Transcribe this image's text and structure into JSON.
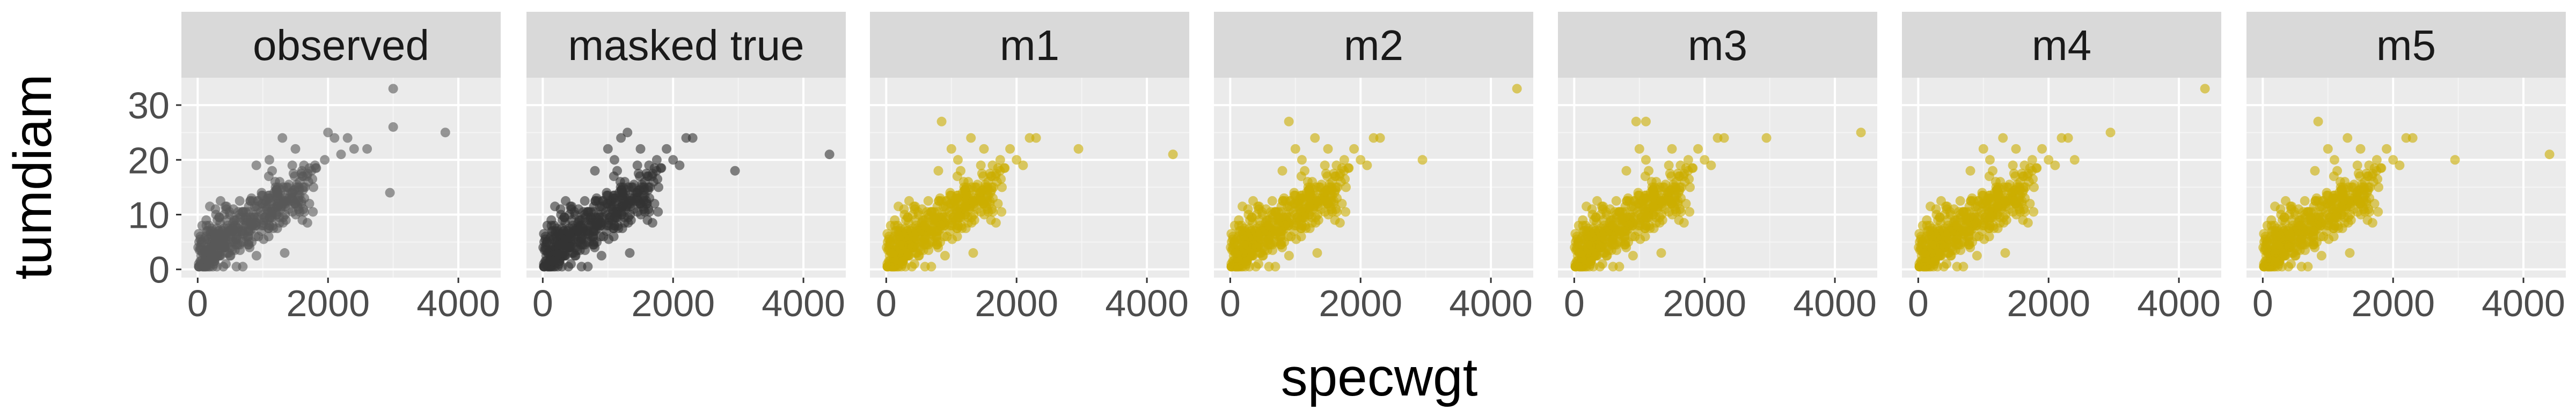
{
  "chart_data": {
    "type": "scatter",
    "layout": "faceted",
    "xlabel": "specwgt",
    "ylabel": "tumdiam",
    "xlim": [
      -250,
      4650
    ],
    "ylim": [
      -1.5,
      35
    ],
    "x_ticks": [
      0,
      2000,
      4000
    ],
    "y_ticks": [
      0,
      10,
      20,
      30
    ],
    "grid": true,
    "panels": [
      {
        "title": "observed",
        "color": "#595959",
        "points": [
          [
            3000,
            33
          ],
          [
            3800,
            25
          ],
          [
            3000,
            26
          ],
          [
            2950,
            14
          ],
          [
            2300,
            24
          ],
          [
            2100,
            24
          ],
          [
            2000,
            25
          ],
          [
            1950,
            20
          ],
          [
            1800,
            19
          ],
          [
            1500,
            22
          ],
          [
            1300,
            24
          ],
          [
            1700,
            16
          ],
          [
            2200,
            21
          ],
          [
            1100,
            20
          ],
          [
            900,
            19
          ],
          [
            1600,
            18
          ],
          [
            2400,
            22
          ],
          [
            2600,
            22
          ]
        ]
      },
      {
        "title": "masked true",
        "color": "#333333",
        "points": [
          [
            4400,
            21
          ],
          [
            2950,
            18
          ],
          [
            2300,
            24
          ],
          [
            2200,
            24
          ],
          [
            2000,
            20
          ],
          [
            1900,
            22
          ],
          [
            1750,
            20
          ],
          [
            1500,
            22
          ],
          [
            1300,
            25
          ],
          [
            1200,
            24
          ],
          [
            1000,
            22
          ],
          [
            1700,
            16
          ],
          [
            1100,
            20
          ],
          [
            800,
            18
          ],
          [
            2100,
            19
          ],
          [
            1600,
            12
          ],
          [
            600,
            8
          ]
        ]
      },
      {
        "title": "m1",
        "color": "#CCAD00",
        "points": [
          [
            4400,
            21
          ],
          [
            2950,
            22
          ],
          [
            2300,
            24
          ],
          [
            2200,
            24
          ],
          [
            2000,
            20
          ],
          [
            1900,
            22
          ],
          [
            1750,
            20
          ],
          [
            1500,
            22
          ],
          [
            1300,
            24
          ],
          [
            850,
            27
          ],
          [
            1000,
            22
          ],
          [
            1700,
            16
          ],
          [
            1100,
            20
          ],
          [
            800,
            18
          ],
          [
            2100,
            19
          ],
          [
            1600,
            14
          ],
          [
            600,
            8
          ]
        ]
      },
      {
        "title": "m2",
        "color": "#CCAD00",
        "points": [
          [
            4400,
            33
          ],
          [
            2950,
            20
          ],
          [
            2300,
            24
          ],
          [
            2200,
            24
          ],
          [
            2000,
            20
          ],
          [
            1900,
            22
          ],
          [
            1750,
            20
          ],
          [
            1500,
            22
          ],
          [
            1300,
            24
          ],
          [
            900,
            27
          ],
          [
            1000,
            22
          ],
          [
            1700,
            16
          ],
          [
            1100,
            20
          ],
          [
            800,
            18
          ],
          [
            2100,
            19
          ],
          [
            1600,
            14
          ],
          [
            600,
            8
          ]
        ]
      },
      {
        "title": "m3",
        "color": "#CCAD00",
        "points": [
          [
            4400,
            25
          ],
          [
            2950,
            24
          ],
          [
            2300,
            24
          ],
          [
            2200,
            24
          ],
          [
            2000,
            20
          ],
          [
            1900,
            22
          ],
          [
            1750,
            20
          ],
          [
            1500,
            22
          ],
          [
            1100,
            27
          ],
          [
            950,
            27
          ],
          [
            1000,
            22
          ],
          [
            1700,
            16
          ],
          [
            1100,
            20
          ],
          [
            800,
            18
          ],
          [
            2100,
            19
          ],
          [
            1600,
            14
          ],
          [
            600,
            8
          ]
        ]
      },
      {
        "title": "m4",
        "color": "#CCAD00",
        "points": [
          [
            4400,
            33
          ],
          [
            2950,
            25
          ],
          [
            2300,
            24
          ],
          [
            2200,
            24
          ],
          [
            2000,
            20
          ],
          [
            1900,
            22
          ],
          [
            1750,
            20
          ],
          [
            1500,
            22
          ],
          [
            1300,
            24
          ],
          [
            1000,
            22
          ],
          [
            1700,
            16
          ],
          [
            1100,
            20
          ],
          [
            800,
            18
          ],
          [
            2100,
            19
          ],
          [
            1600,
            14
          ],
          [
            600,
            8
          ],
          [
            2400,
            20
          ]
        ]
      },
      {
        "title": "m5",
        "color": "#CCAD00",
        "points": [
          [
            4400,
            21
          ],
          [
            2950,
            20
          ],
          [
            2300,
            24
          ],
          [
            2200,
            24
          ],
          [
            2000,
            20
          ],
          [
            1900,
            22
          ],
          [
            1750,
            20
          ],
          [
            1500,
            22
          ],
          [
            1300,
            24
          ],
          [
            850,
            27
          ],
          [
            1000,
            22
          ],
          [
            1700,
            16
          ],
          [
            1100,
            20
          ],
          [
            800,
            18
          ],
          [
            2100,
            19
          ],
          [
            1600,
            14
          ],
          [
            600,
            8
          ]
        ]
      }
    ]
  }
}
